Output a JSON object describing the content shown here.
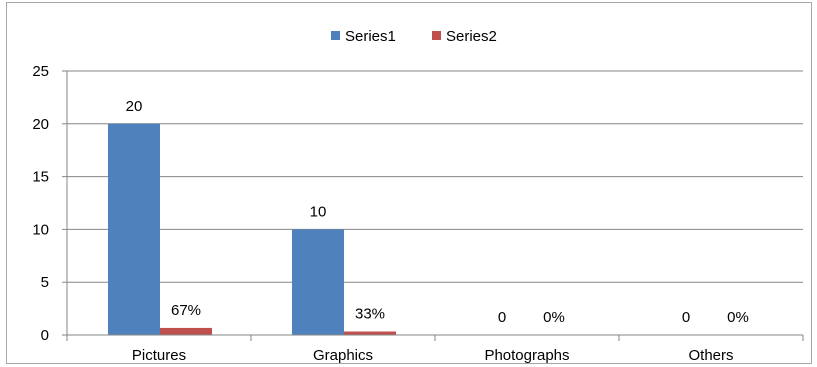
{
  "chart_data": {
    "type": "bar",
    "categories": [
      "Pictures",
      "Graphics",
      "Photographs",
      "Others"
    ],
    "series": [
      {
        "name": "Series1",
        "values": [
          20,
          10,
          0,
          0
        ],
        "color": "#4f81bd",
        "labels": [
          "20",
          "10",
          "0",
          "0"
        ]
      },
      {
        "name": "Series2",
        "values": [
          0.67,
          0.33,
          0,
          0
        ],
        "color": "#c0504d",
        "labels": [
          "67%",
          "33%",
          "0%",
          "0%"
        ]
      }
    ],
    "ylim": [
      0,
      25
    ],
    "yticks": [
      0,
      5,
      10,
      15,
      20,
      25
    ],
    "grid": true,
    "legend_position": "top-center"
  }
}
